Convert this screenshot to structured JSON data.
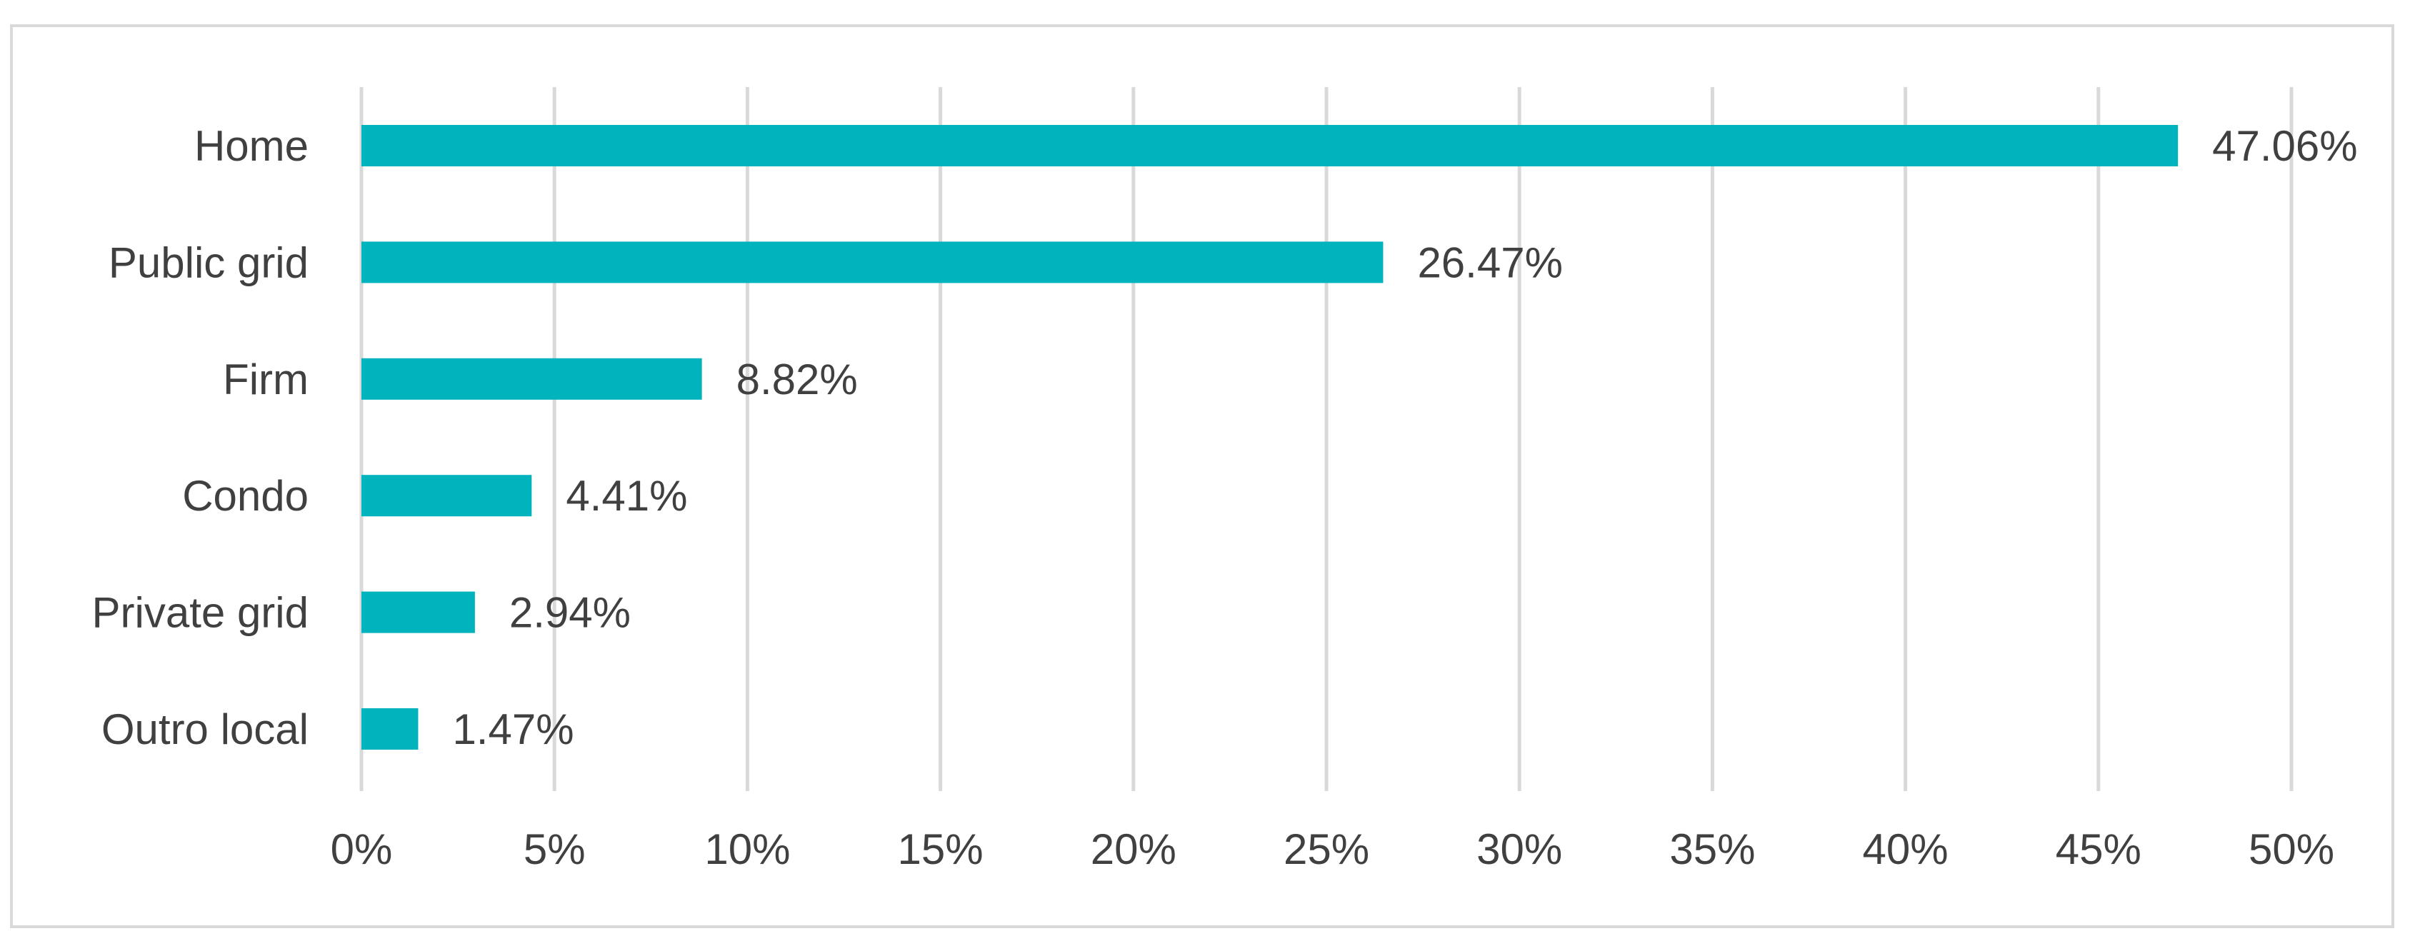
{
  "chart_data": {
    "type": "bar",
    "orientation": "horizontal",
    "categories": [
      "Home",
      "Public grid",
      "Firm",
      "Condo",
      "Private grid",
      "Outro local"
    ],
    "values": [
      47.06,
      26.47,
      8.82,
      4.41,
      2.94,
      1.47
    ],
    "data_labels": [
      "47.06%",
      "26.47%",
      "8.82%",
      "4.41%",
      "2.94%",
      "1.47%"
    ],
    "x_ticks": [
      "0%",
      "5%",
      "10%",
      "15%",
      "20%",
      "25%",
      "30%",
      "35%",
      "40%",
      "45%",
      "50%"
    ],
    "xlim": [
      0,
      50
    ],
    "grid": "vertical",
    "legend": "none",
    "bar_color": "#00b3bd",
    "grid_color": "#d9d9d9",
    "text_color": "#404040"
  }
}
